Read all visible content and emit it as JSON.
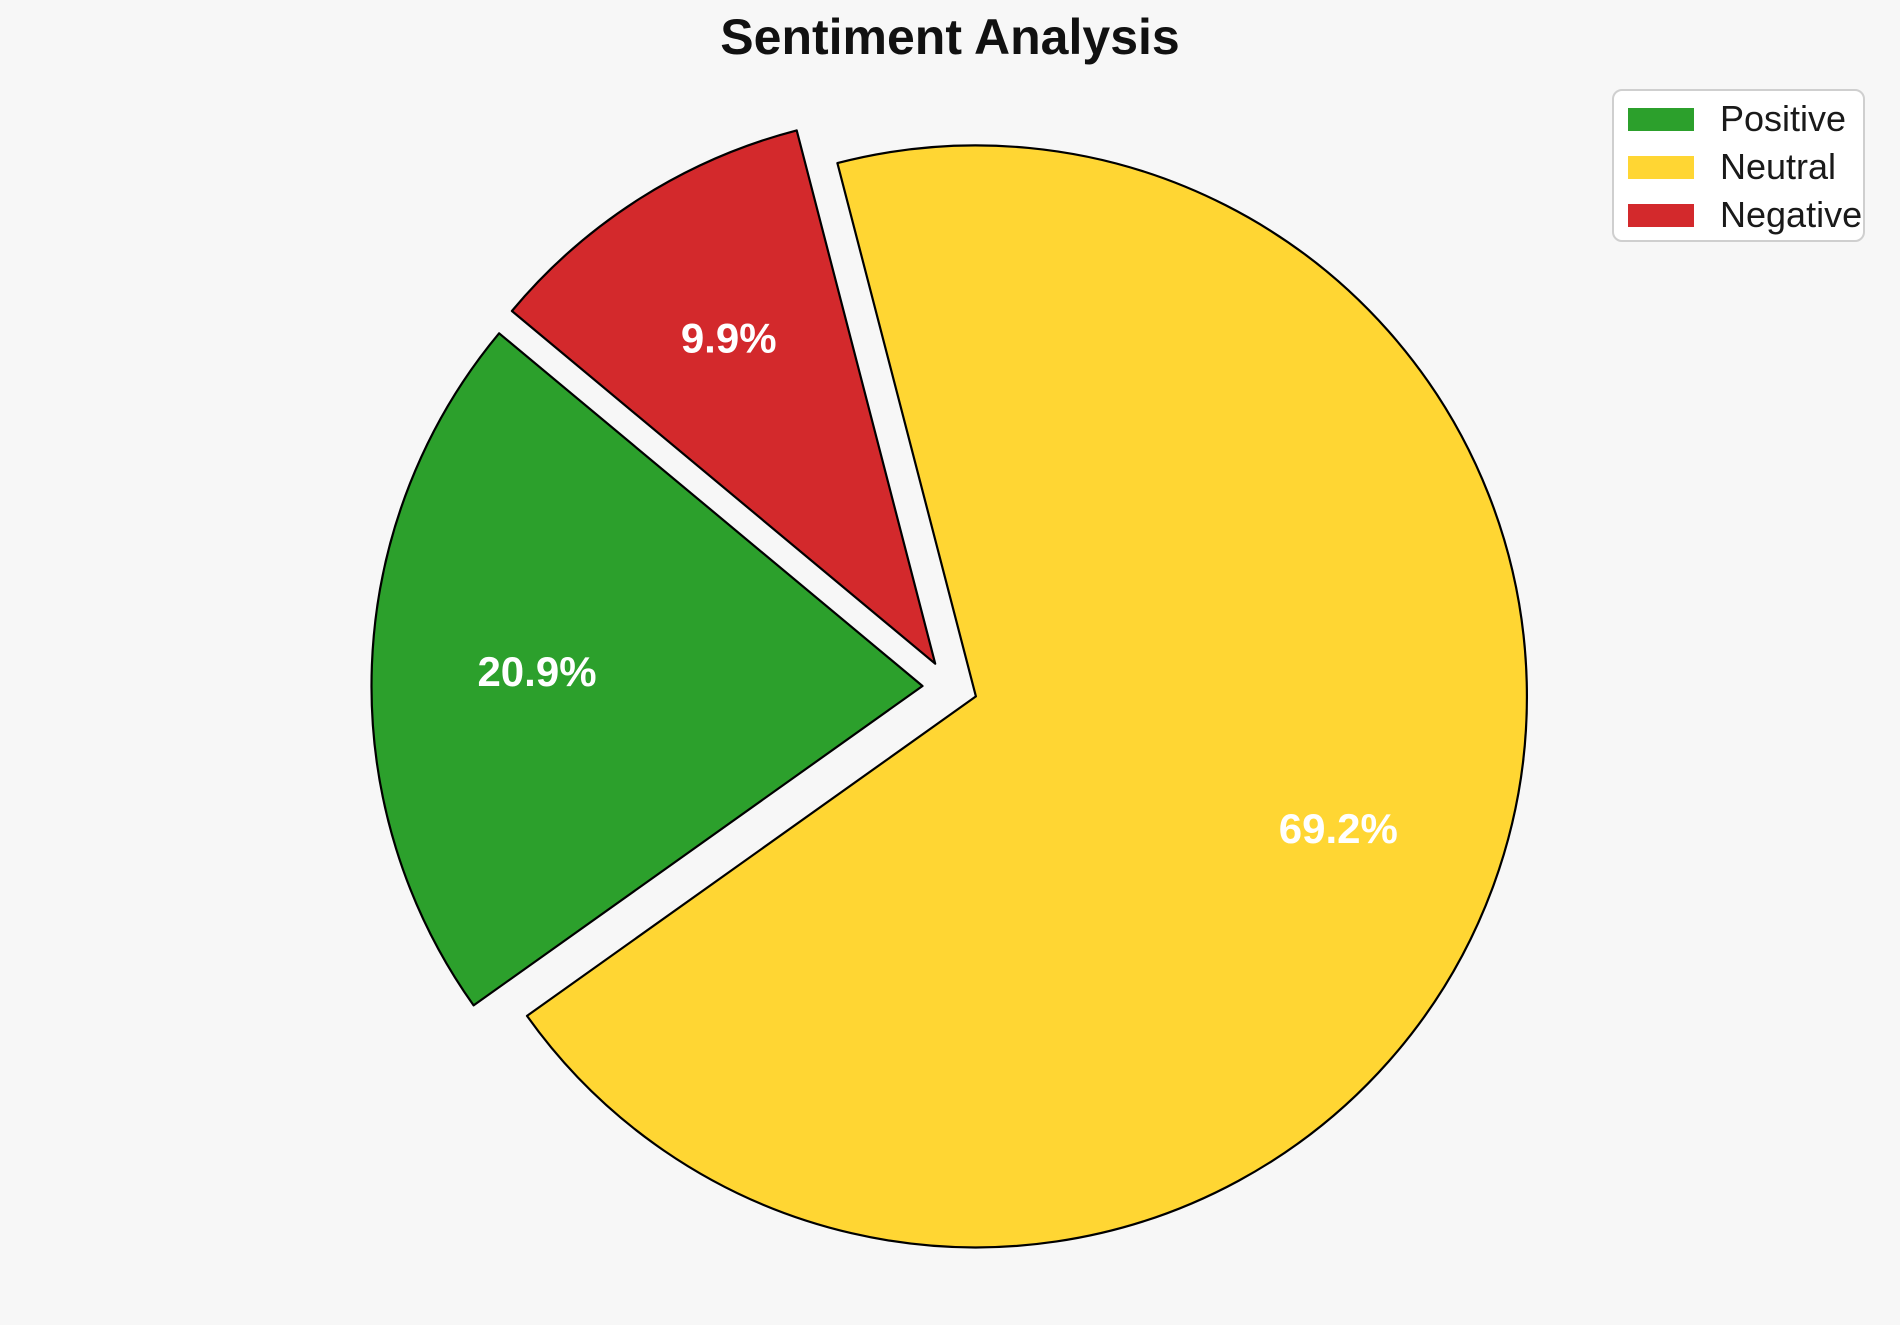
{
  "page": {
    "background": "#f7f7f7"
  },
  "chart_data": {
    "type": "pie",
    "title": "Sentiment Analysis",
    "labels": [
      "Positive",
      "Neutral",
      "Negative"
    ],
    "values": [
      20.9,
      69.2,
      9.9
    ],
    "pct_labels": [
      "20.9%",
      "69.2%",
      "9.9%"
    ],
    "colors": [
      "#2ca02c",
      "#ffd633",
      "#d3292c"
    ],
    "edge_color": "#000000",
    "pct_label_color": "#ffffff",
    "start_angle": 140.2,
    "counterclock": true,
    "explode": 0.05,
    "pct_distance": 0.7,
    "legend_position": "upper right",
    "legend": {
      "items": [
        "Positive",
        "Neutral",
        "Negative"
      ]
    }
  }
}
